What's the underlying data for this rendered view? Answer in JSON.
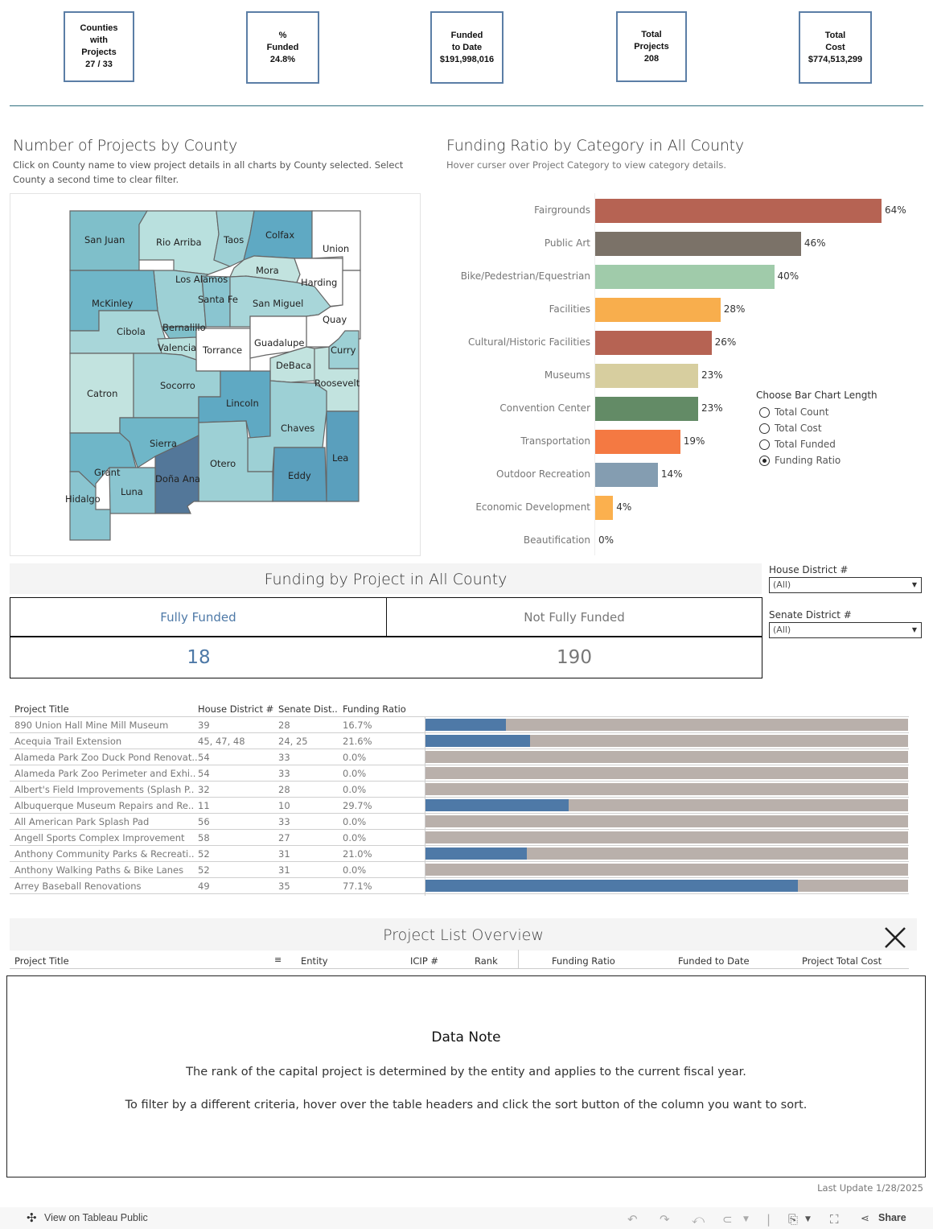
{
  "kpis": [
    {
      "label": "Counties\nwith\nProjects",
      "value": "27 / 33"
    },
    {
      "label": "%\nFunded",
      "value": "24.8%"
    },
    {
      "label": "Funded\nto Date",
      "value": "$191,998,016"
    },
    {
      "label": "Total\nProjects",
      "value": "208"
    },
    {
      "label": "Total\nCost",
      "value": "$774,513,299"
    }
  ],
  "map_section": {
    "title": "Number of Projects by County",
    "subtitle": "Click on County name to view project details in all charts by County selected. Select County a second time to clear filter.",
    "counties": [
      "San Juan",
      "Rio Arriba",
      "Taos",
      "Colfax",
      "Union",
      "Mora",
      "Harding",
      "Los Alamos",
      "Santa Fe",
      "San Miguel",
      "Quay",
      "McKinley",
      "Cibola",
      "Bernalillo",
      "Valencia",
      "Torrance",
      "Guadalupe",
      "Curry",
      "DeBaca",
      "Roosevelt",
      "Catron",
      "Socorro",
      "Lincoln",
      "Chaves",
      "Sierra",
      "Lea",
      "Otero",
      "Eddy",
      "Grant",
      "Doña Ana",
      "Luna",
      "Hidalgo"
    ]
  },
  "category_section": {
    "title": "Funding Ratio by Category in All County",
    "subtitle": "Hover curser over Project Category  to view category details."
  },
  "chart_data": {
    "type": "bar",
    "orientation": "horizontal",
    "title": "Funding Ratio by Category in All County",
    "categories": [
      "Fairgrounds",
      "Public Art",
      "Bike/Pedestrian/Equestrian",
      "Facilities",
      "Cultural/Historic Facilities",
      "Museums",
      "Convention Center",
      "Transportation",
      "Outdoor Recreation",
      "Economic Development",
      "Beautification"
    ],
    "values": [
      64,
      46,
      40,
      28,
      26,
      23,
      23,
      19,
      14,
      4,
      0
    ],
    "labels": [
      "64%",
      "46%",
      "40%",
      "28%",
      "26%",
      "23%",
      "23%",
      "19%",
      "14%",
      "4%",
      "0%"
    ],
    "colors": [
      "#b66353",
      "#7b7268",
      "#a0cbaa",
      "#f8ae4d",
      "#b66353",
      "#d7ce9f",
      "#638b66",
      "#f47942",
      "#849db1",
      "#fbb04e",
      "#ccc"
    ],
    "xlim": [
      0,
      64
    ],
    "unit": "%"
  },
  "bar_length_control": {
    "title": "Choose Bar Chart Length",
    "options": [
      {
        "label": "Total Count",
        "selected": false
      },
      {
        "label": "Total Cost",
        "selected": false
      },
      {
        "label": "Total Funded",
        "selected": false
      },
      {
        "label": "Funding Ratio",
        "selected": true
      }
    ]
  },
  "funding_section": {
    "title": "Funding by Project in All County",
    "fully_funded_label": "Fully Funded",
    "not_fully_funded_label": "Not Fully Funded",
    "fully_funded_count": "18",
    "not_fully_funded_count": "190"
  },
  "filters": {
    "house": {
      "label": "House District #",
      "value": "(All)"
    },
    "senate": {
      "label": "Senate District #",
      "value": "(All)"
    }
  },
  "project_table": {
    "headers": [
      "Project Title",
      "House District #",
      "Senate Dist..",
      "Funding Ratio"
    ],
    "rows": [
      {
        "title": "890 Union Hall Mine Mill Museum",
        "house": "39",
        "senate": "28",
        "ratio": "16.7%",
        "ratio_value": 16.7
      },
      {
        "title": "Acequia Trail Extension",
        "house": "45, 47, 48",
        "senate": "24, 25",
        "ratio": "21.6%",
        "ratio_value": 21.6
      },
      {
        "title": "Alameda Park Zoo Duck Pond Renovat..",
        "house": "54",
        "senate": "33",
        "ratio": "0.0%",
        "ratio_value": 0
      },
      {
        "title": "Alameda Park Zoo Perimeter and Exhi..",
        "house": "54",
        "senate": "33",
        "ratio": "0.0%",
        "ratio_value": 0
      },
      {
        "title": "Albert's Field Improvements (Splash P..",
        "house": "32",
        "senate": "28",
        "ratio": "0.0%",
        "ratio_value": 0
      },
      {
        "title": "Albuquerque Museum Repairs and Re..",
        "house": "11",
        "senate": "10",
        "ratio": "29.7%",
        "ratio_value": 29.7
      },
      {
        "title": "All American Park Splash Pad",
        "house": "56",
        "senate": "33",
        "ratio": "0.0%",
        "ratio_value": 0
      },
      {
        "title": "Angell Sports Complex Improvement",
        "house": "58",
        "senate": "27",
        "ratio": "0.0%",
        "ratio_value": 0
      },
      {
        "title": "Anthony Community Parks & Recreati..",
        "house": "52",
        "senate": "31",
        "ratio": "21.0%",
        "ratio_value": 21.0
      },
      {
        "title": "Anthony Walking Paths & Bike Lanes",
        "house": "52",
        "senate": "31",
        "ratio": "0.0%",
        "ratio_value": 0
      },
      {
        "title": "Arrey Baseball Renovations",
        "house": "49",
        "senate": "35",
        "ratio": "77.1%",
        "ratio_value": 77.1
      }
    ]
  },
  "project_list": {
    "title": "Project List Overview",
    "headers": [
      "Project Title",
      "Entity",
      "ICIP #",
      "Rank",
      "Funding Ratio",
      "Funded to Date",
      "Project Total Cost"
    ]
  },
  "data_note": {
    "title": "Data Note",
    "line1": "The rank of the capital project is determined by the entity and applies to the current fiscal year.",
    "line2": "To filter by a different criteria, hover over the table  headers and click the sort button of the column you want to sort."
  },
  "last_update": "Last Update 1/28/2025",
  "footer": {
    "view_label": "View on Tableau Public",
    "share_label": "Share"
  }
}
